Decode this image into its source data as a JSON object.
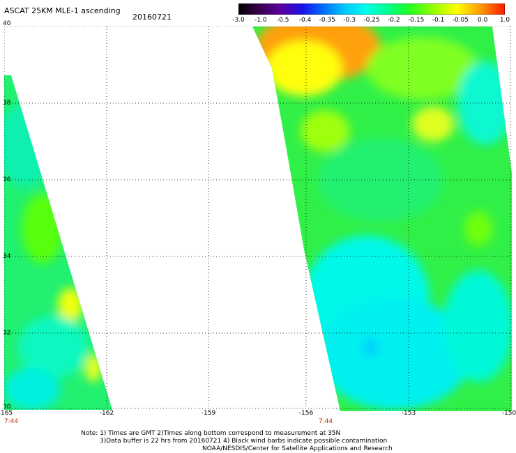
{
  "header": {
    "title": "ASCAT 25KM MLE-1 ascending",
    "date": "20160721"
  },
  "colorbar": {
    "labels": [
      "-3.0",
      "-1.0",
      "-0.5",
      "-0.4",
      "-0.35",
      "-0.3",
      "-0.25",
      "-0.2",
      "-0.15",
      "-0.1",
      "-0.05",
      "0.0",
      "1.0"
    ],
    "colors": [
      "#3a0040",
      "#5a0090",
      "#1a10e0",
      "#0060ff",
      "#00a8ff",
      "#00f0f0",
      "#00ffb0",
      "#00ff40",
      "#40ff00",
      "#b8ff00",
      "#ffff00",
      "#ff9000",
      "#ff1000"
    ]
  },
  "axes": {
    "y_ticks": [
      "40",
      "38",
      "36",
      "34",
      "32",
      "30"
    ],
    "x_ticks": [
      "-165",
      "-162",
      "-159",
      "-156",
      "-153",
      "-150"
    ],
    "lat_range": [
      30,
      40
    ],
    "lon_range": [
      -165,
      -150
    ]
  },
  "swath_times": [
    "7:44",
    "7:44"
  ],
  "notes": [
    "Note: 1) Times are GMT 2)Times along bottom correspond to measurement at 35N",
    "3)Data buffer is 22 hrs from 20160721 4) Black wind barbs indicate possible contamination",
    "NOAA/NESDIS/Center for Satellite Applications and Research"
  ]
}
